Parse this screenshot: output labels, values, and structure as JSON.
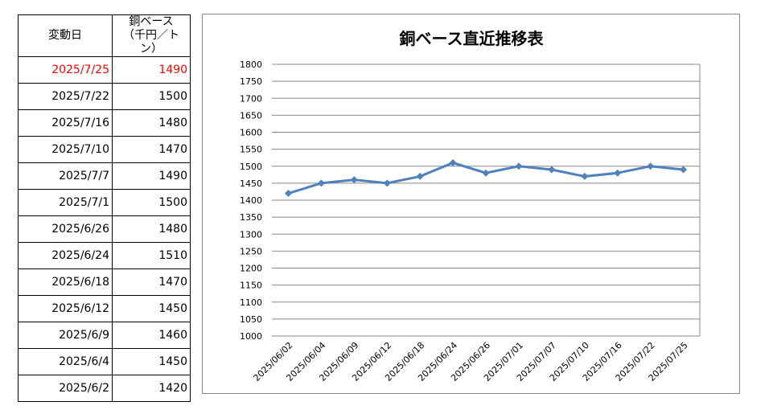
{
  "table": {
    "headers": [
      "変動日",
      "銅ベース",
      "（千円／トン）"
    ],
    "rows": [
      {
        "date": "2025/7/25",
        "value": "1490",
        "highlight": true
      },
      {
        "date": "2025/7/22",
        "value": "1500"
      },
      {
        "date": "2025/7/16",
        "value": "1480"
      },
      {
        "date": "2025/7/10",
        "value": "1470"
      },
      {
        "date": "2025/7/7",
        "value": "1490"
      },
      {
        "date": "2025/7/1",
        "value": "1500"
      },
      {
        "date": "2025/6/26",
        "value": "1480"
      },
      {
        "date": "2025/6/24",
        "value": "1510"
      },
      {
        "date": "2025/6/18",
        "value": "1470"
      },
      {
        "date": "2025/6/12",
        "value": "1450"
      },
      {
        "date": "2025/6/9",
        "value": "1460"
      },
      {
        "date": "2025/6/4",
        "value": "1450"
      },
      {
        "date": "2025/6/2",
        "value": "1420"
      }
    ],
    "highlight_color": "#ff0000"
  },
  "chart_data": {
    "type": "line",
    "title": "銅ベース直近推移表",
    "categories": [
      "2025/06/02",
      "2025/06/04",
      "2025/06/09",
      "2025/06/12",
      "2025/06/18",
      "2025/06/24",
      "2025/06/26",
      "2025/07/01",
      "2025/07/07",
      "2025/07/10",
      "2025/07/16",
      "2025/07/22",
      "2025/07/25"
    ],
    "series": [
      {
        "name": "銅ベース",
        "values": [
          1420,
          1450,
          1460,
          1450,
          1470,
          1510,
          1480,
          1500,
          1490,
          1470,
          1480,
          1500,
          1490
        ],
        "color": "#4f81bd"
      }
    ],
    "ylim": [
      1000,
      1800
    ],
    "ytick_step": 50,
    "grid": true,
    "legend": "none"
  }
}
